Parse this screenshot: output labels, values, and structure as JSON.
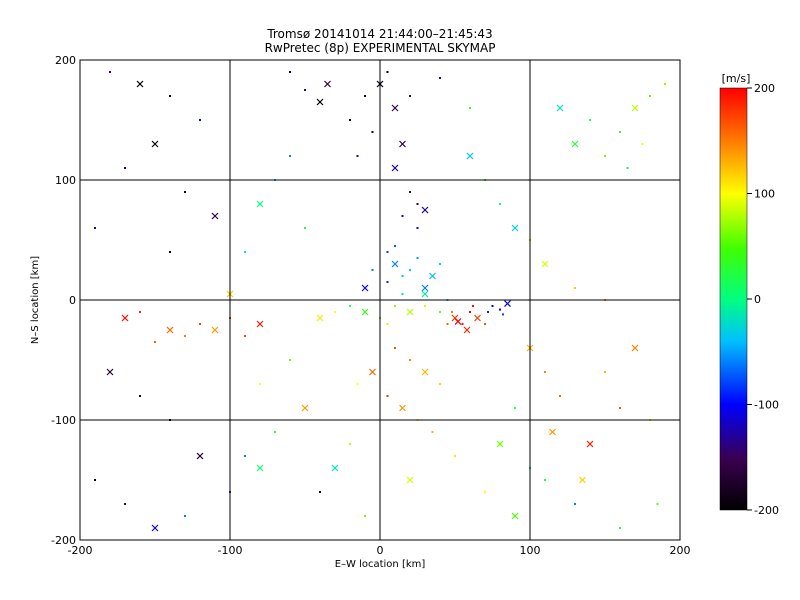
{
  "chart_data": {
    "type": "scatter",
    "title": "Tromsø 20141014 21:44:00–21:45:43",
    "subtitle": "RwPretec (8p) EXPERIMENTAL SKYMAP",
    "xlabel": "E–W location [km]",
    "ylabel": "N–S location [km]",
    "xlim": [
      -200,
      200
    ],
    "ylim": [
      -200,
      200
    ],
    "xticks": [
      -200,
      -100,
      0,
      100,
      200
    ],
    "yticks": [
      -200,
      -100,
      0,
      100,
      200
    ],
    "grid": true,
    "colorbar": {
      "label": "[m/s]",
      "ticks": [
        200,
        100,
        0,
        -100,
        -200
      ],
      "range": [
        -200,
        200
      ]
    },
    "markers": [
      "dot",
      "cross"
    ],
    "series": [
      {
        "points": [
          [
            0,
            180,
            -190
          ],
          [
            5,
            190,
            -180
          ],
          [
            -10,
            170,
            -170
          ],
          [
            10,
            160,
            -150
          ],
          [
            -20,
            150,
            -190
          ],
          [
            20,
            170,
            -140
          ],
          [
            -35,
            180,
            -160
          ],
          [
            -50,
            175,
            -150
          ],
          [
            -5,
            140,
            -180
          ],
          [
            15,
            130,
            -160
          ],
          [
            25,
            80,
            -150
          ],
          [
            20,
            90,
            -140
          ],
          [
            30,
            75,
            -120
          ],
          [
            15,
            70,
            -130
          ],
          [
            25,
            60,
            -110
          ],
          [
            -40,
            165,
            -200
          ],
          [
            40,
            185,
            -130
          ],
          [
            -60,
            190,
            -170
          ],
          [
            10,
            110,
            -120
          ],
          [
            -15,
            120,
            -130
          ],
          [
            5,
            40,
            -80
          ],
          [
            10,
            30,
            -60
          ],
          [
            15,
            20,
            -40
          ],
          [
            20,
            25,
            -30
          ],
          [
            30,
            10,
            -60
          ],
          [
            10,
            45,
            -70
          ],
          [
            25,
            35,
            -50
          ],
          [
            35,
            20,
            -40
          ],
          [
            -5,
            25,
            -60
          ],
          [
            40,
            30,
            -20
          ],
          [
            -10,
            10,
            -100
          ],
          [
            5,
            15,
            -90
          ],
          [
            15,
            5,
            -20
          ],
          [
            30,
            5,
            -10
          ],
          [
            45,
            0,
            -30
          ],
          [
            -20,
            -5,
            20
          ],
          [
            -10,
            -10,
            40
          ],
          [
            0,
            -15,
            60
          ],
          [
            10,
            -5,
            70
          ],
          [
            20,
            -10,
            80
          ],
          [
            30,
            -5,
            90
          ],
          [
            -30,
            -10,
            100
          ],
          [
            -40,
            -15,
            110
          ],
          [
            40,
            -10,
            60
          ],
          [
            5,
            -20,
            90
          ],
          [
            50,
            -15,
            180
          ],
          [
            55,
            -20,
            190
          ],
          [
            60,
            -10,
            200
          ],
          [
            65,
            -15,
            175
          ],
          [
            45,
            -20,
            160
          ],
          [
            70,
            -20,
            170
          ],
          [
            58,
            -25,
            185
          ],
          [
            48,
            -10,
            150
          ],
          [
            62,
            -5,
            195
          ],
          [
            52,
            -18,
            200
          ],
          [
            75,
            -5,
            -100
          ],
          [
            80,
            -8,
            -120
          ],
          [
            85,
            -3,
            -110
          ],
          [
            72,
            -10,
            -90
          ],
          [
            82,
            -12,
            -80
          ],
          [
            -80,
            -20,
            190
          ],
          [
            -100,
            -15,
            170
          ],
          [
            -120,
            -20,
            180
          ],
          [
            -140,
            -25,
            160
          ],
          [
            -160,
            -10,
            185
          ],
          [
            -130,
            -30,
            150
          ],
          [
            -110,
            -25,
            140
          ],
          [
            -90,
            -30,
            175
          ],
          [
            -150,
            -35,
            165
          ],
          [
            -170,
            -15,
            195
          ],
          [
            10,
            -40,
            170
          ],
          [
            20,
            -50,
            150
          ],
          [
            30,
            -60,
            130
          ],
          [
            40,
            -70,
            120
          ],
          [
            5,
            -80,
            180
          ],
          [
            15,
            -90,
            140
          ],
          [
            25,
            -100,
            110
          ],
          [
            35,
            -110,
            130
          ],
          [
            -5,
            -60,
            160
          ],
          [
            -15,
            -70,
            100
          ],
          [
            -20,
            -120,
            80
          ],
          [
            -30,
            -140,
            -20
          ],
          [
            -40,
            -160,
            -180
          ],
          [
            -10,
            -180,
            60
          ],
          [
            20,
            -150,
            90
          ],
          [
            50,
            -130,
            110
          ],
          [
            70,
            -160,
            100
          ],
          [
            90,
            -180,
            50
          ],
          [
            110,
            -150,
            20
          ],
          [
            130,
            -170,
            -60
          ],
          [
            140,
            -120,
            190
          ],
          [
            160,
            -90,
            170
          ],
          [
            150,
            -60,
            130
          ],
          [
            170,
            -40,
            150
          ],
          [
            180,
            -100,
            110
          ],
          [
            120,
            -80,
            160
          ],
          [
            135,
            -150,
            120
          ],
          [
            185,
            -170,
            60
          ],
          [
            160,
            -190,
            20
          ],
          [
            115,
            -110,
            140
          ],
          [
            150,
            120,
            60
          ],
          [
            160,
            140,
            40
          ],
          [
            170,
            160,
            80
          ],
          [
            140,
            150,
            20
          ],
          [
            180,
            170,
            50
          ],
          [
            130,
            130,
            30
          ],
          [
            165,
            110,
            10
          ],
          [
            190,
            180,
            70
          ],
          [
            120,
            160,
            -20
          ],
          [
            175,
            130,
            90
          ],
          [
            -180,
            190,
            -150
          ],
          [
            -160,
            180,
            -200
          ],
          [
            -140,
            170,
            -170
          ],
          [
            -120,
            150,
            -100
          ],
          [
            -150,
            130,
            -190
          ],
          [
            -170,
            110,
            -160
          ],
          [
            -130,
            90,
            -180
          ],
          [
            -110,
            70,
            -150
          ],
          [
            -190,
            60,
            -120
          ],
          [
            -140,
            40,
            -190
          ],
          [
            -180,
            -60,
            -160
          ],
          [
            -160,
            -80,
            -180
          ],
          [
            -140,
            -100,
            -190
          ],
          [
            -120,
            -130,
            -170
          ],
          [
            -190,
            -150,
            -200
          ],
          [
            -170,
            -170,
            -140
          ],
          [
            -150,
            -190,
            -110
          ],
          [
            -130,
            -180,
            -60
          ],
          [
            -100,
            -160,
            -80
          ],
          [
            -80,
            -140,
            10
          ],
          [
            -60,
            120,
            -60
          ],
          [
            -70,
            100,
            -40
          ],
          [
            -80,
            80,
            0
          ],
          [
            -50,
            60,
            30
          ],
          [
            -90,
            40,
            -20
          ],
          [
            60,
            120,
            -40
          ],
          [
            70,
            100,
            20
          ],
          [
            80,
            80,
            10
          ],
          [
            90,
            60,
            -30
          ],
          [
            60,
            160,
            40
          ],
          [
            100,
            50,
            70
          ],
          [
            110,
            30,
            90
          ],
          [
            130,
            10,
            120
          ],
          [
            150,
            0,
            140
          ],
          [
            -100,
            5,
            120
          ],
          [
            -60,
            -50,
            60
          ],
          [
            -80,
            -70,
            100
          ],
          [
            -50,
            -90,
            140
          ],
          [
            -70,
            -110,
            30
          ],
          [
            -90,
            -130,
            -60
          ],
          [
            100,
            -40,
            130
          ],
          [
            110,
            -60,
            150
          ],
          [
            90,
            -90,
            30
          ],
          [
            80,
            -120,
            60
          ],
          [
            100,
            -140,
            -10
          ]
        ]
      }
    ]
  }
}
